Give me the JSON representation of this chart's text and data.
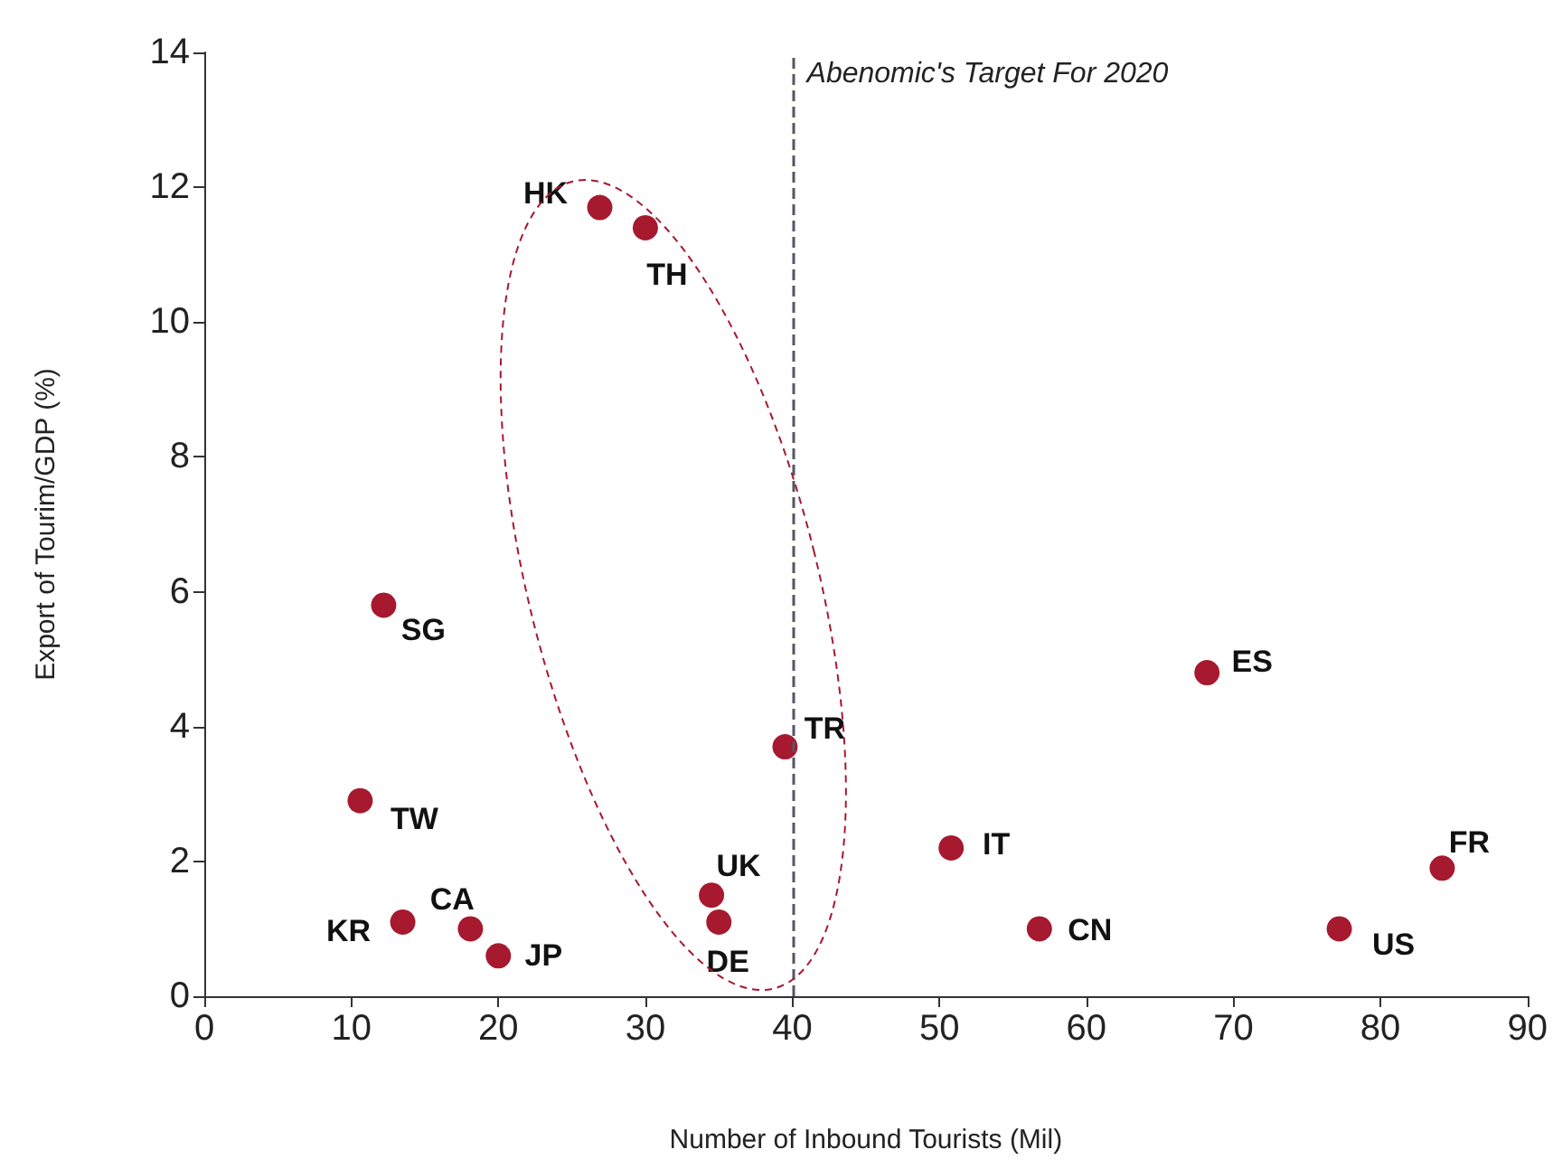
{
  "chart_data": {
    "type": "scatter",
    "xlabel": "Number of Inbound Tourists (Mil)",
    "ylabel": "Export of Tourim/GDP (%)",
    "x": [
      26.9,
      30.0,
      12.2,
      39.5,
      68.2,
      10.6,
      50.8,
      84.2,
      34.5,
      35.0,
      13.5,
      18.1,
      20.0,
      56.8,
      77.2
    ],
    "values": [
      11.7,
      11.4,
      5.8,
      3.7,
      4.8,
      2.9,
      2.2,
      1.9,
      1.5,
      1.1,
      1.1,
      1.0,
      0.6,
      1.0,
      1.0
    ],
    "color": "#a6192e",
    "marker": "circle",
    "annotations": [
      {
        "text": "HK",
        "x": 26.9,
        "y": 11.7
      },
      {
        "text": "TH",
        "x": 30.0,
        "y": 11.4
      },
      {
        "text": "SG",
        "x": 12.2,
        "y": 5.8
      },
      {
        "text": "TR",
        "x": 39.5,
        "y": 3.7
      },
      {
        "text": "ES",
        "x": 68.2,
        "y": 4.8
      },
      {
        "text": "TW",
        "x": 10.6,
        "y": 2.9
      },
      {
        "text": "IT",
        "x": 50.8,
        "y": 2.2
      },
      {
        "text": "FR",
        "x": 84.2,
        "y": 1.9
      },
      {
        "text": "UK",
        "x": 34.5,
        "y": 1.5
      },
      {
        "text": "DE",
        "x": 35.0,
        "y": 1.1
      },
      {
        "text": "KR",
        "x": 13.5,
        "y": 1.1
      },
      {
        "text": "CA",
        "x": 18.1,
        "y": 1.0
      },
      {
        "text": "JP",
        "x": 20.0,
        "y": 0.6
      },
      {
        "text": "CN",
        "x": 56.8,
        "y": 1.0
      },
      {
        "text": "US",
        "x": 77.2,
        "y": 1.0
      }
    ],
    "ref_lines": [
      {
        "axis": "x",
        "value": 40,
        "label": "Abenomic's Target For 2020",
        "color": "#555566",
        "line_style": "dashed"
      }
    ],
    "xlim": [
      0,
      90
    ],
    "xticks": [
      0,
      10,
      20,
      30,
      40,
      50,
      60,
      70,
      80,
      90
    ],
    "ylim": [
      0,
      14
    ],
    "yticks": [
      0,
      2,
      4,
      6,
      8,
      10,
      12,
      14
    ],
    "grid": false
  }
}
